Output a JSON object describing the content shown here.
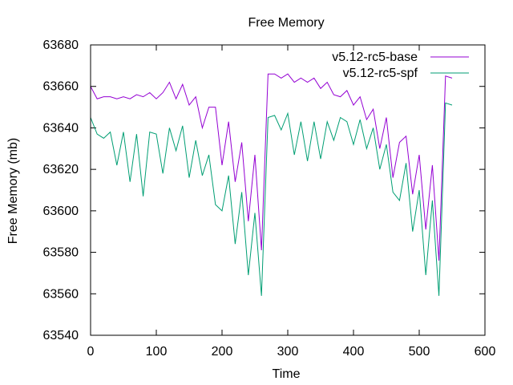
{
  "chart_data": {
    "type": "line",
    "title": "Free Memory",
    "xlabel": "Time",
    "ylabel": "Free Memory (mb)",
    "xlim": [
      0,
      600
    ],
    "ylim": [
      63540,
      63680
    ],
    "xticks": [
      "0",
      "100",
      "200",
      "300",
      "400",
      "500",
      "600"
    ],
    "yticks": [
      "63540",
      "63560",
      "63580",
      "63600",
      "63620",
      "63640",
      "63660",
      "63680"
    ],
    "grid": false,
    "legend_position": "top-right",
    "series": [
      {
        "name": "v5.12-rc5-base",
        "color": "#9400d3",
        "x": [
          0,
          10,
          20,
          30,
          40,
          50,
          60,
          70,
          80,
          90,
          100,
          110,
          120,
          130,
          140,
          150,
          160,
          170,
          180,
          190,
          200,
          210,
          220,
          230,
          240,
          250,
          260,
          270,
          280,
          290,
          300,
          310,
          320,
          330,
          340,
          350,
          360,
          370,
          380,
          390,
          400,
          410,
          420,
          430,
          440,
          450,
          460,
          470,
          480,
          490,
          500,
          510,
          520,
          530,
          540,
          550
        ],
        "values": [
          63660,
          63654,
          63655,
          63655,
          63654,
          63655,
          63654,
          63656,
          63655,
          63657,
          63654,
          63657,
          63662,
          63654,
          63661,
          63651,
          63655,
          63640,
          63650,
          63650,
          63622,
          63643,
          63614,
          63633,
          63595,
          63627,
          63581,
          63666,
          63666,
          63664,
          63666,
          63662,
          63664,
          63662,
          63664,
          63659,
          63662,
          63656,
          63655,
          63658,
          63651,
          63655,
          63644,
          63649,
          63630,
          63645,
          63616,
          63633,
          63636,
          63608,
          63627,
          63591,
          63622,
          63576,
          63665,
          63664
        ]
      },
      {
        "name": "v5.12-rc5-spf",
        "color": "#009e73",
        "x": [
          0,
          10,
          20,
          30,
          40,
          50,
          60,
          70,
          80,
          90,
          100,
          110,
          120,
          130,
          140,
          150,
          160,
          170,
          180,
          190,
          200,
          210,
          220,
          230,
          240,
          250,
          260,
          270,
          280,
          290,
          300,
          310,
          320,
          330,
          340,
          350,
          360,
          370,
          380,
          390,
          400,
          410,
          420,
          430,
          440,
          450,
          460,
          470,
          480,
          490,
          500,
          510,
          520,
          530,
          540,
          550
        ],
        "values": [
          63645,
          63637,
          63635,
          63638,
          63622,
          63638,
          63614,
          63637,
          63607,
          63638,
          63637,
          63618,
          63640,
          63629,
          63641,
          63616,
          63634,
          63617,
          63627,
          63603,
          63600,
          63617,
          63584,
          63609,
          63569,
          63599,
          63559,
          63645,
          63646,
          63639,
          63647,
          63627,
          63643,
          63624,
          63643,
          63625,
          63643,
          63634,
          63645,
          63643,
          63632,
          63644,
          63630,
          63640,
          63620,
          63632,
          63609,
          63605,
          63623,
          63590,
          63610,
          63569,
          63605,
          63559,
          63652,
          63651
        ]
      }
    ]
  }
}
